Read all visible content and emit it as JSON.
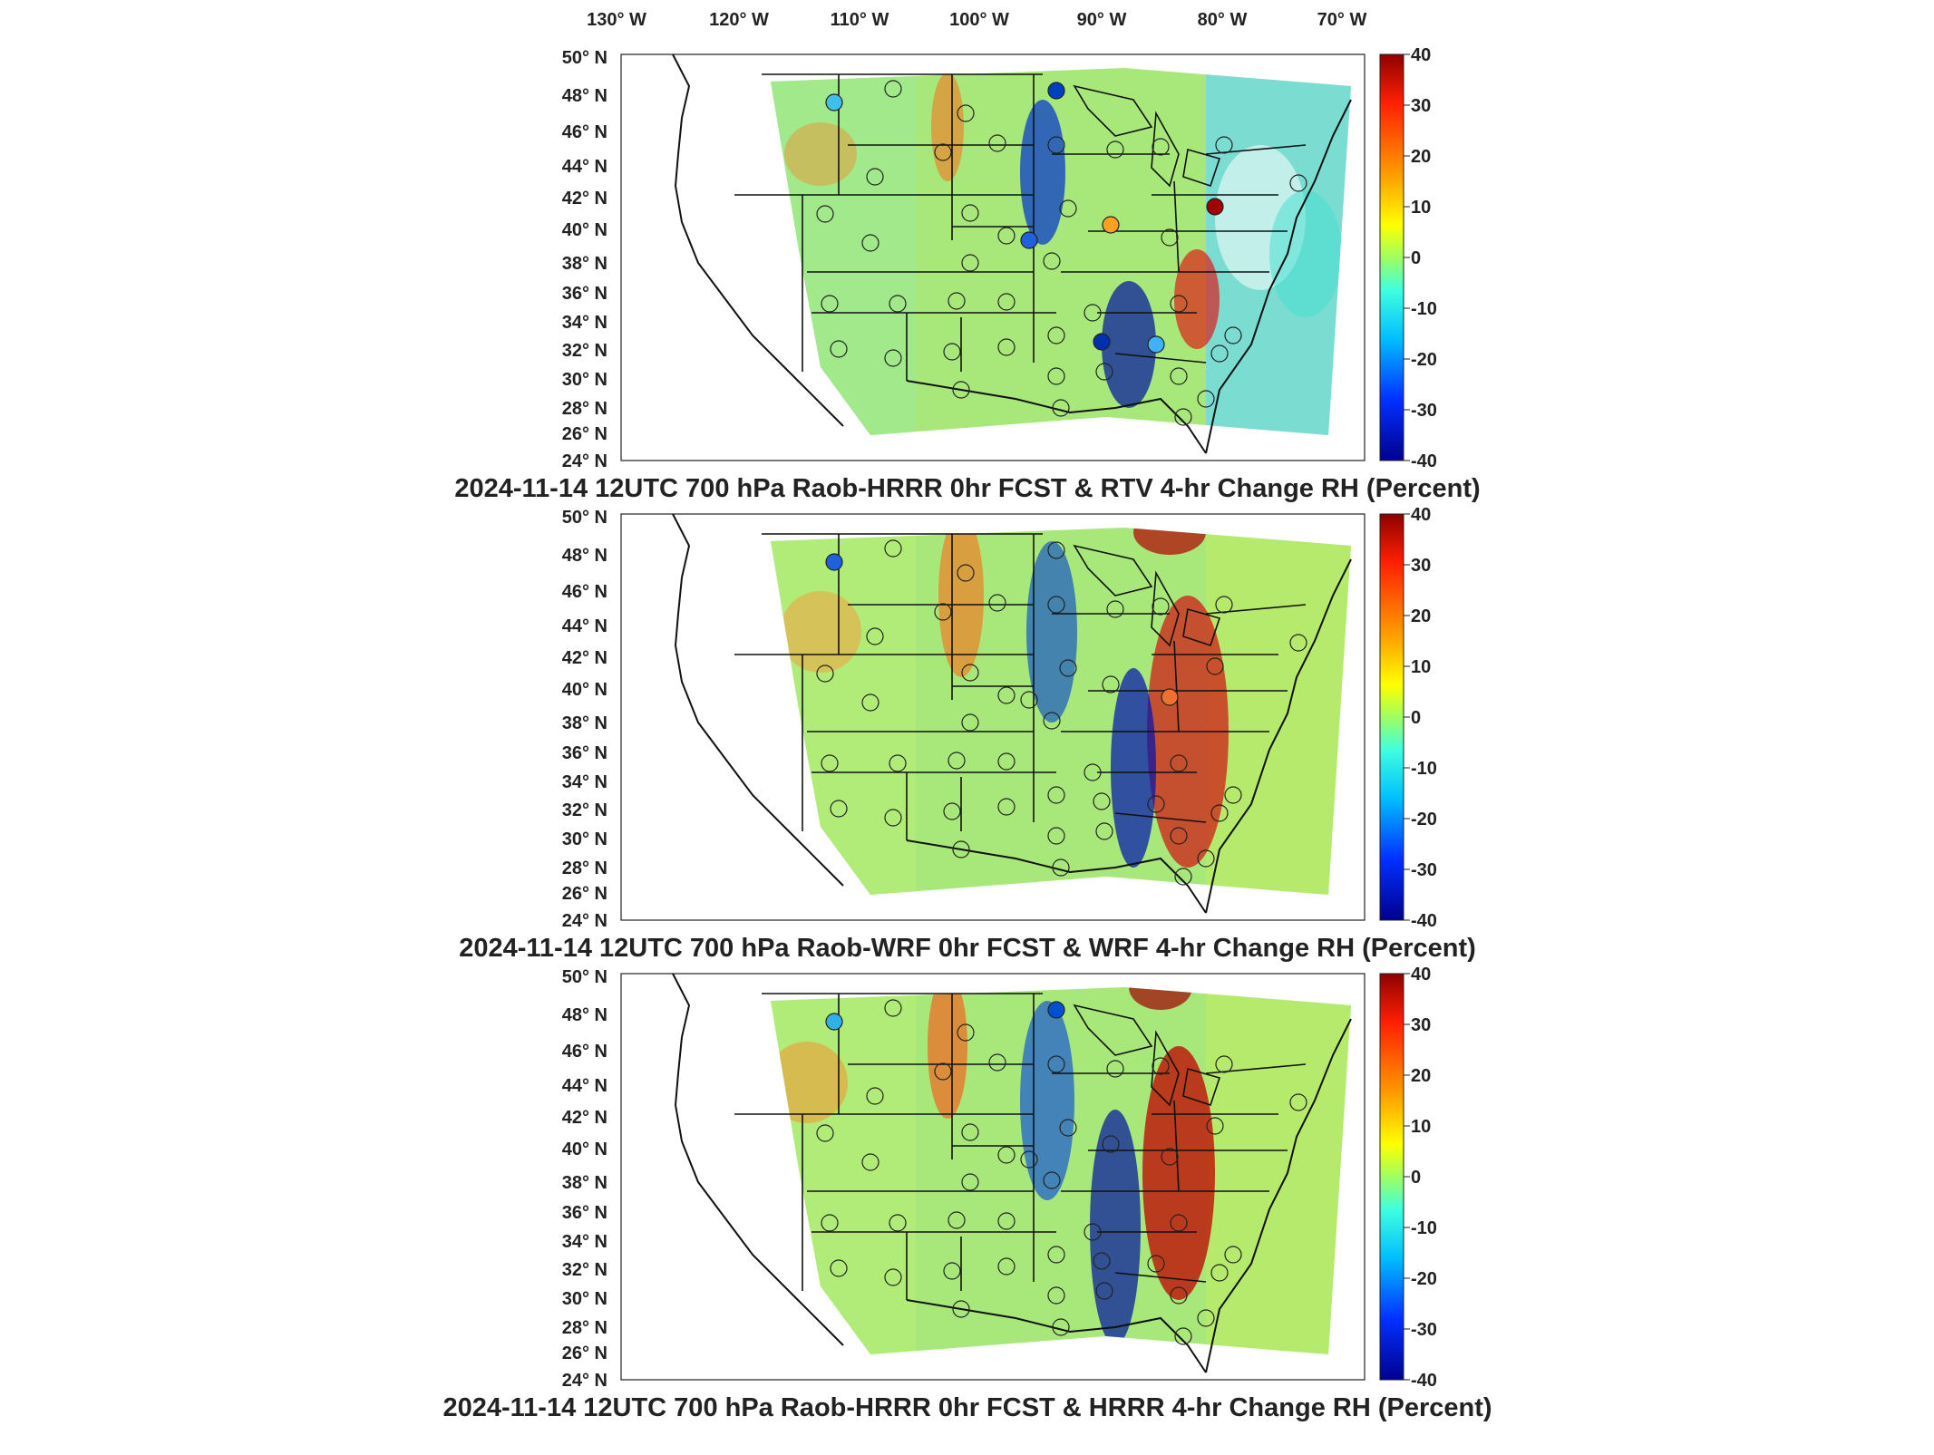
{
  "lon_labels": [
    "130° W",
    "120° W",
    "110° W",
    "100° W",
    "90° W",
    "80° W",
    "70° W"
  ],
  "lat_labels": [
    "50° N",
    "48° N",
    "46° N",
    "44° N",
    "42° N",
    "40° N",
    "38° N",
    "36° N",
    "34° N",
    "32° N",
    "30° N",
    "28° N",
    "26° N",
    "24° N"
  ],
  "colorbar": {
    "ticks": [
      "40",
      "30",
      "20",
      "10",
      "0",
      "-10",
      "-20",
      "-30",
      "-40"
    ],
    "colors": [
      "#00008f",
      "#0040ff",
      "#00bfff",
      "#40ffbf",
      "#bfff40",
      "#ffbf00",
      "#ff4000",
      "#8f0000"
    ]
  },
  "panels": [
    {
      "title": "2024-11-14 12UTC 700 hPa Raob-HRRR 0hr FCST & RTV 4-hr Change RH (Percent)",
      "field_colors": {
        "west": "#9fe890",
        "plains": "#a8e87a",
        "east": "#6fd8e8"
      }
    },
    {
      "title": "2024-11-14 12UTC 700 hPa Raob-WRF 0hr FCST & WRF 4-hr Change RH (Percent)",
      "field_colors": {
        "west": "#b4ec78",
        "plains": "#a8e87a",
        "east": "#b8ea6a"
      }
    },
    {
      "title": "2024-11-14 12UTC 700 hPa Raob-HRRR 0hr FCST & HRRR 4-hr Change RH (Percent)",
      "field_colors": {
        "west": "#b4ec78",
        "plains": "#a8e87a",
        "east": "#b8ea6a"
      }
    }
  ]
}
